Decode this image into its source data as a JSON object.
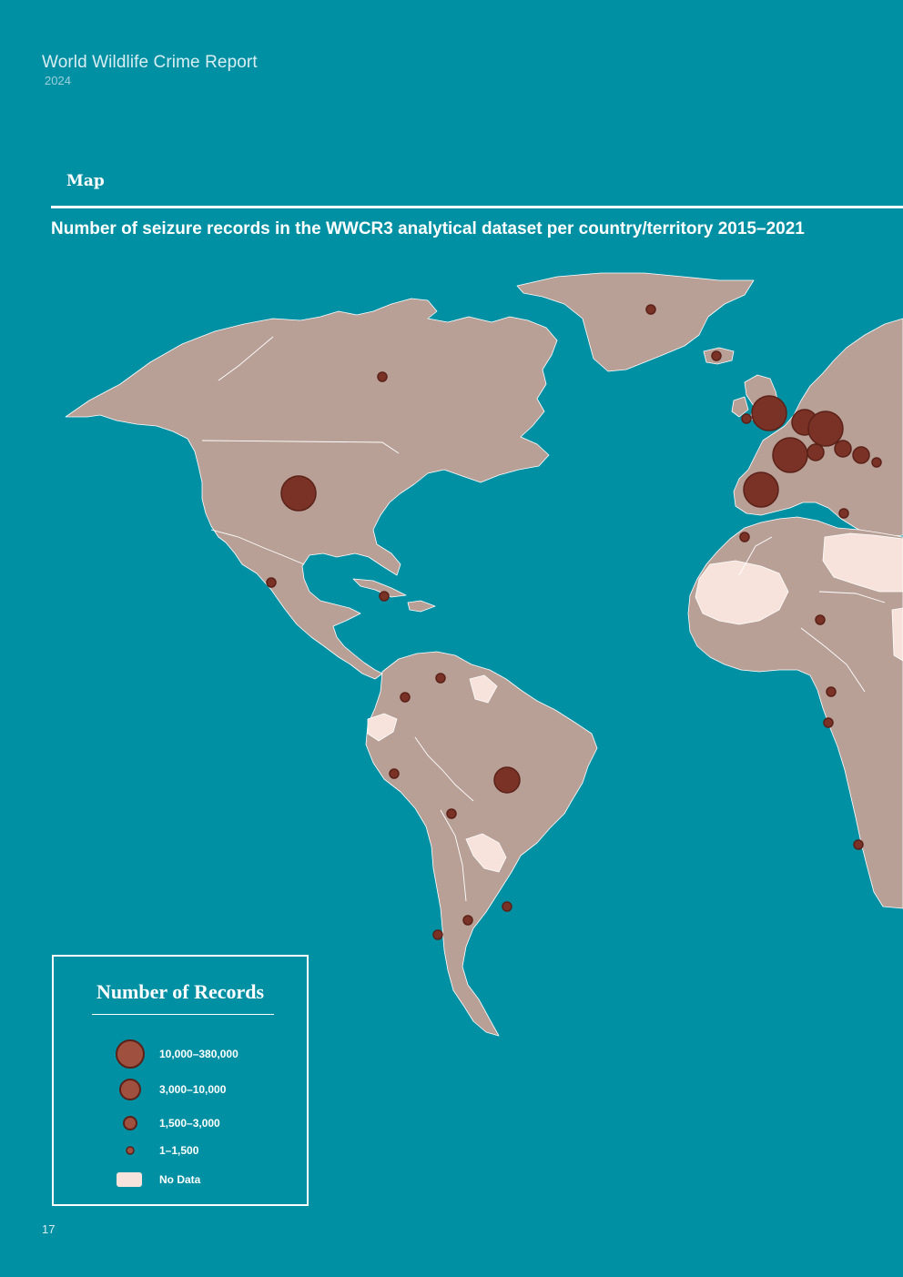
{
  "header": {
    "report_title": "World Wildlife Crime Report",
    "year": "2024"
  },
  "section_label": "Map",
  "map_title": "Number of seizure records in the WWCR3 analytical dataset per country/territory 2015–2021",
  "legend": {
    "title": "Number of Records",
    "items": [
      {
        "label": "10,000–380,000",
        "symbol": "circle-xl"
      },
      {
        "label": "3,000–10,000",
        "symbol": "circle-lg"
      },
      {
        "label": "1,500–3,000",
        "symbol": "circle-md"
      },
      {
        "label": "1–1,500",
        "symbol": "circle-sm"
      },
      {
        "label": "No Data",
        "symbol": "no-data-swatch"
      }
    ]
  },
  "page_number": "17",
  "colors": {
    "ocean": "#0090a4",
    "land": "#b8a097",
    "no_data": "#f7e3dc",
    "marker_fill": "#7b3226",
    "marker_stroke": "#5a2118",
    "border": "#ffffff"
  },
  "map": {
    "projection": "Equal Earth (view: Americas, Western Europe, Africa)",
    "marker_symbols": [
      "circle-xl",
      "circle-lg",
      "circle-md",
      "circle-sm"
    ],
    "no_data_regions": [
      "Libya",
      "Algeria",
      "Mauritania",
      "Ecuador",
      "Paraguay",
      "Guyana",
      "Suriname",
      "Western Sahara",
      "Sudan"
    ],
    "markers": [
      {
        "place": "United States",
        "class": "10,000–380,000"
      },
      {
        "place": "Brazil",
        "class": "3,000–10,000"
      },
      {
        "place": "United Kingdom",
        "class": "10,000–380,000"
      },
      {
        "place": "Netherlands",
        "class": "3,000–10,000"
      },
      {
        "place": "Germany",
        "class": "10,000–380,000"
      },
      {
        "place": "France",
        "class": "10,000–380,000"
      },
      {
        "place": "Spain",
        "class": "10,000–380,000"
      },
      {
        "place": "Belgium",
        "class": "1,500–3,000"
      },
      {
        "place": "Switzerland",
        "class": "1,500–3,000"
      },
      {
        "place": "Czechia",
        "class": "1,500–3,000"
      },
      {
        "place": "Austria",
        "class": "1–1,500"
      },
      {
        "place": "Canada",
        "class": "1–1,500"
      },
      {
        "place": "Greenland",
        "class": "1–1,500"
      },
      {
        "place": "Iceland",
        "class": "1–1,500"
      },
      {
        "place": "Mexico",
        "class": "1–1,500"
      },
      {
        "place": "Cuba",
        "class": "1–1,500"
      },
      {
        "place": "Colombia",
        "class": "1–1,500"
      },
      {
        "place": "Venezuela",
        "class": "1–1,500"
      },
      {
        "place": "Peru",
        "class": "1–1,500"
      },
      {
        "place": "Bolivia",
        "class": "1–1,500"
      },
      {
        "place": "Argentina",
        "class": "1–1,500"
      },
      {
        "place": "Chile",
        "class": "1–1,500"
      },
      {
        "place": "Uruguay",
        "class": "1–1,500"
      },
      {
        "place": "Morocco",
        "class": "1–1,500"
      },
      {
        "place": "Nigeria",
        "class": "1–1,500"
      },
      {
        "place": "Cameroon",
        "class": "1–1,500"
      },
      {
        "place": "Gabon",
        "class": "1–1,500"
      },
      {
        "place": "Angola",
        "class": "1–1,500"
      },
      {
        "place": "Ireland",
        "class": "1–1,500"
      },
      {
        "place": "Italy",
        "class": "1–1,500"
      }
    ]
  }
}
